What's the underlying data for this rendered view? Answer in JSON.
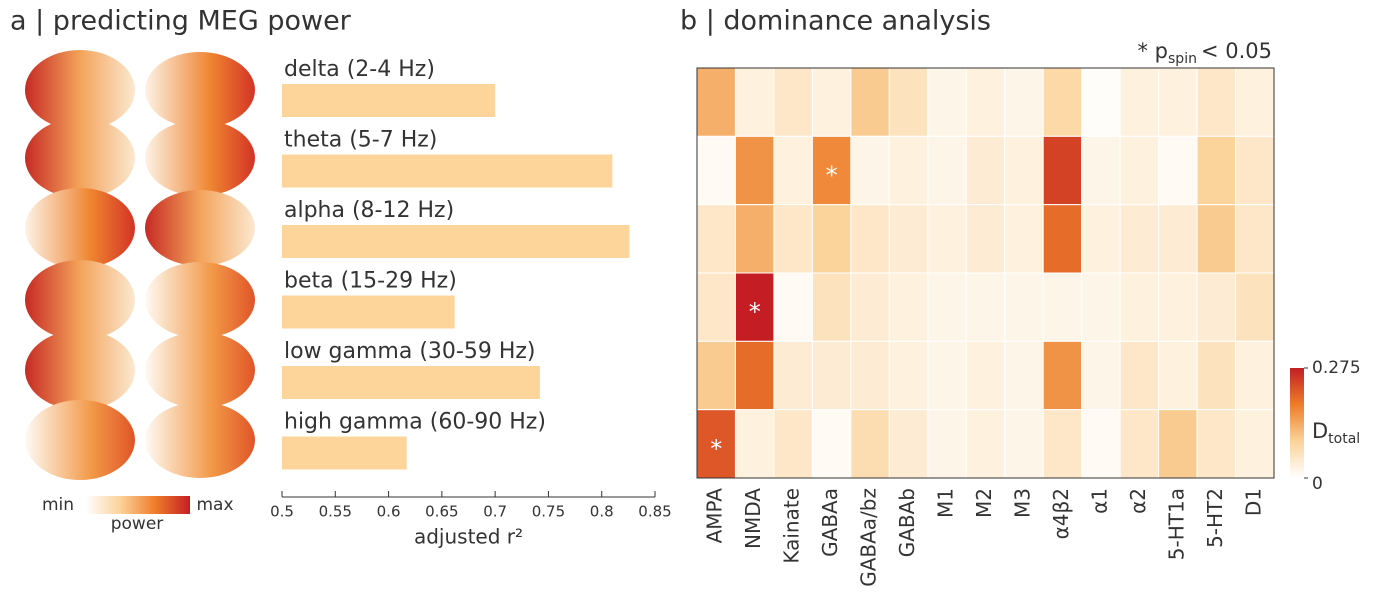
{
  "chart_data": [
    {
      "type": "bar",
      "orientation": "horizontal",
      "title": "a | predicting MEG power",
      "categories": [
        "delta (2-4 Hz)",
        "theta (5-7 Hz)",
        "alpha (8-12 Hz)",
        "beta (15-29 Hz)",
        "low gamma (30-59 Hz)",
        "high gamma (60-90 Hz)"
      ],
      "values": [
        0.7,
        0.81,
        0.826,
        0.662,
        0.742,
        0.617
      ],
      "color": "#fdd59a",
      "xlim": [
        0.5,
        0.85
      ],
      "xticks": [
        0.5,
        0.55,
        0.6,
        0.65,
        0.7,
        0.75,
        0.8,
        0.85
      ],
      "xlabel": "adjusted r²",
      "colorbar": {
        "min_label": "min",
        "max_label": "max",
        "label": "power",
        "colors": [
          "#ffffff",
          "#fbd39a",
          "#ee7d2a",
          "#c41e24"
        ]
      }
    },
    {
      "type": "heatmap",
      "title": "b | dominance analysis",
      "annotation": {
        "text": "* p",
        "subscript": "spin",
        "suffix": "< 0.05"
      },
      "categories": [
        "AMPA",
        "NMDA",
        "Kainate",
        "GABAa",
        "GABAa/bz",
        "GABAb",
        "M1",
        "M2",
        "M3",
        "α4β2",
        "α1",
        "α2",
        "5-HT1a",
        "5-HT2",
        "D1"
      ],
      "values": [
        [
          0.13,
          0.03,
          0.05,
          0.03,
          0.1,
          0.06,
          0.02,
          0.03,
          0.02,
          0.08,
          0.005,
          0.03,
          0.03,
          0.05,
          0.03
        ],
        [
          0.01,
          0.16,
          0.03,
          0.17,
          0.02,
          0.03,
          0.02,
          0.04,
          0.03,
          0.24,
          0.02,
          0.03,
          0.01,
          0.09,
          0.05
        ],
        [
          0.05,
          0.13,
          0.05,
          0.09,
          0.05,
          0.04,
          0.03,
          0.04,
          0.03,
          0.2,
          0.03,
          0.04,
          0.04,
          0.1,
          0.05
        ],
        [
          0.05,
          0.275,
          0.01,
          0.06,
          0.04,
          0.03,
          0.02,
          0.02,
          0.02,
          0.02,
          0.02,
          0.03,
          0.03,
          0.04,
          0.06
        ],
        [
          0.1,
          0.2,
          0.04,
          0.04,
          0.04,
          0.03,
          0.02,
          0.03,
          0.02,
          0.16,
          0.02,
          0.05,
          0.03,
          0.06,
          0.03
        ],
        [
          0.22,
          0.03,
          0.05,
          0.01,
          0.07,
          0.04,
          0.02,
          0.03,
          0.02,
          0.05,
          0.01,
          0.05,
          0.1,
          0.05,
          0.03
        ]
      ],
      "significance_marker": "*",
      "significant": [
        {
          "row": 1,
          "col": 3
        },
        {
          "row": 3,
          "col": 1
        },
        {
          "row": 5,
          "col": 0
        }
      ],
      "colorbar": {
        "ticks": [
          0,
          0.275
        ],
        "label": {
          "text": "D",
          "subscript": "total"
        },
        "colors": [
          "#ffffff",
          "#fbd39a",
          "#ee7d2a",
          "#c41e24"
        ]
      }
    }
  ]
}
